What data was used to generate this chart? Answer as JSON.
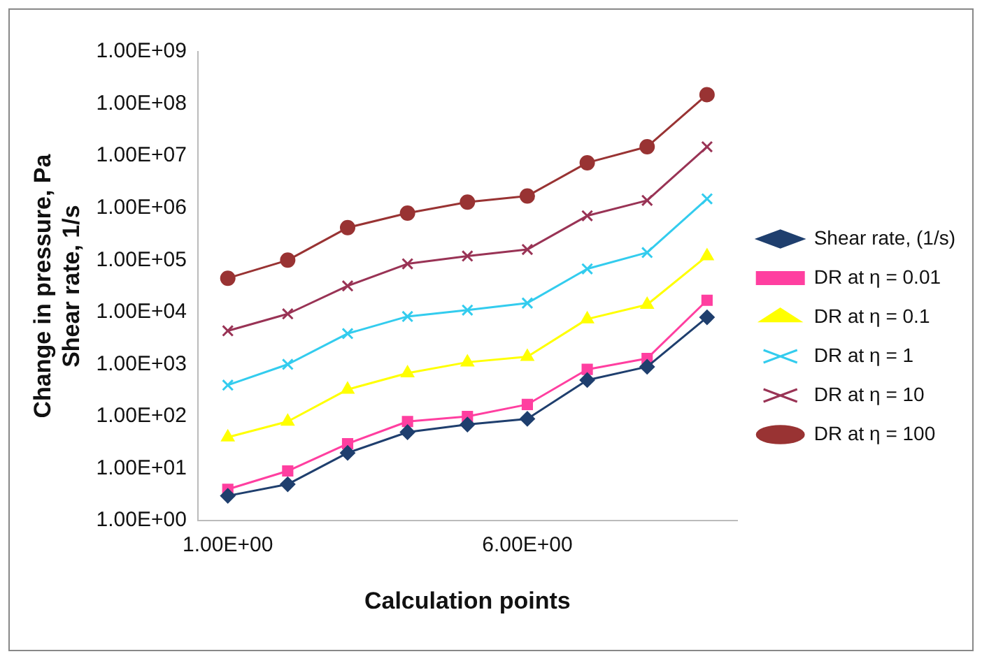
{
  "chart_data": {
    "type": "line",
    "xlabel": "Calculation points",
    "ylabel": "Change in pressure, Pa\nShear rate, 1/s",
    "categories": [
      "1.00E+00",
      null,
      null,
      null,
      null,
      "6.00E+00",
      null,
      null,
      null
    ],
    "log": "y",
    "ylim": [
      1,
      1000000000
    ],
    "yticks": [
      {
        "value": 1,
        "label": "1.00E+00"
      },
      {
        "value": 10,
        "label": "1.00E+01"
      },
      {
        "value": 100,
        "label": "1.00E+02"
      },
      {
        "value": 1000,
        "label": "1.00E+03"
      },
      {
        "value": 10000,
        "label": "1.00E+04"
      },
      {
        "value": 100000,
        "label": "1.00E+05"
      },
      {
        "value": 1000000,
        "label": "1.00E+06"
      },
      {
        "value": 10000000,
        "label": "1.00E+07"
      },
      {
        "value": 100000000,
        "label": "1.00E+08"
      },
      {
        "value": 1000000000,
        "label": "1.00E+09"
      }
    ],
    "grid": false,
    "legend": "right",
    "series": [
      {
        "name": "Shear rate, (1/s)",
        "color": "#1f3f6e",
        "marker": "diamond",
        "values": [
          3,
          5,
          20,
          50,
          70,
          90,
          500,
          900,
          8000
        ]
      },
      {
        "name": "DR at η = 0.01",
        "color": "#ff3fa0",
        "marker": "square",
        "values": [
          4,
          9,
          30,
          80,
          100,
          170,
          800,
          1300,
          17000
        ]
      },
      {
        "name": "DR at η = 0.1",
        "color": "#ffff00",
        "marker": "triangle",
        "values": [
          40,
          80,
          330,
          680,
          1100,
          1400,
          7400,
          14000,
          120000
        ]
      },
      {
        "name": "DR at η = 1",
        "color": "#33ccee",
        "marker": "cross",
        "values": [
          400,
          1000,
          3900,
          8300,
          11000,
          15000,
          68000,
          140000,
          1500000
        ]
      },
      {
        "name": "DR at η = 10",
        "color": "#993355",
        "marker": "cross",
        "values": [
          4400,
          9300,
          32000,
          85000,
          120000,
          160000,
          710000,
          1400000,
          15000000
        ]
      },
      {
        "name": "DR at η = 100",
        "color": "#993333",
        "marker": "circle",
        "values": [
          45000,
          100000,
          420000,
          800000,
          1300000,
          1700000,
          7400000,
          15000000,
          150000000
        ]
      }
    ]
  }
}
